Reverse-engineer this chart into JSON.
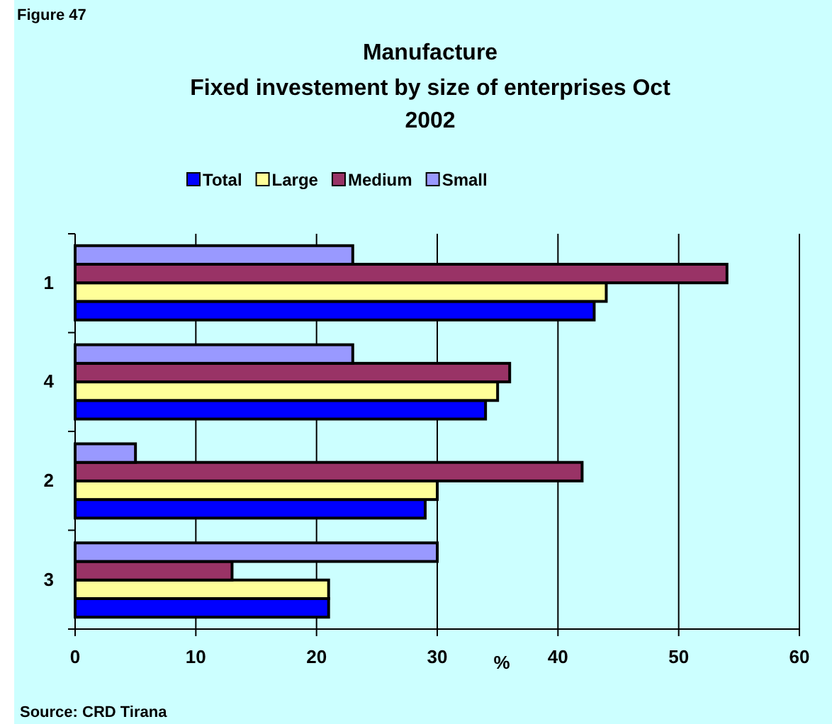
{
  "chart_data": {
    "type": "bar",
    "orientation": "horizontal",
    "title": "Manufacture",
    "subtitle": "Fixed investement by size of enterprises Oct 2002",
    "xlabel": "%",
    "categories": [
      "1",
      "4",
      "2",
      "3"
    ],
    "series": [
      {
        "name": "Total",
        "color": "#0000ff",
        "values": [
          43,
          34,
          29,
          21
        ]
      },
      {
        "name": "Large",
        "color": "#ffff99",
        "values": [
          44,
          35,
          30,
          21
        ]
      },
      {
        "name": "Medium",
        "color": "#993366",
        "values": [
          54,
          36,
          42,
          13
        ]
      },
      {
        "name": "Small",
        "color": "#9999ff",
        "values": [
          23,
          23,
          5,
          30
        ]
      }
    ],
    "xlim": [
      0,
      60
    ],
    "xticks": [
      0,
      10,
      20,
      30,
      40,
      50,
      60
    ],
    "grid": "x",
    "legend": "top",
    "annotations": [
      "Figure 47",
      "Source: CRD Tirana"
    ]
  }
}
